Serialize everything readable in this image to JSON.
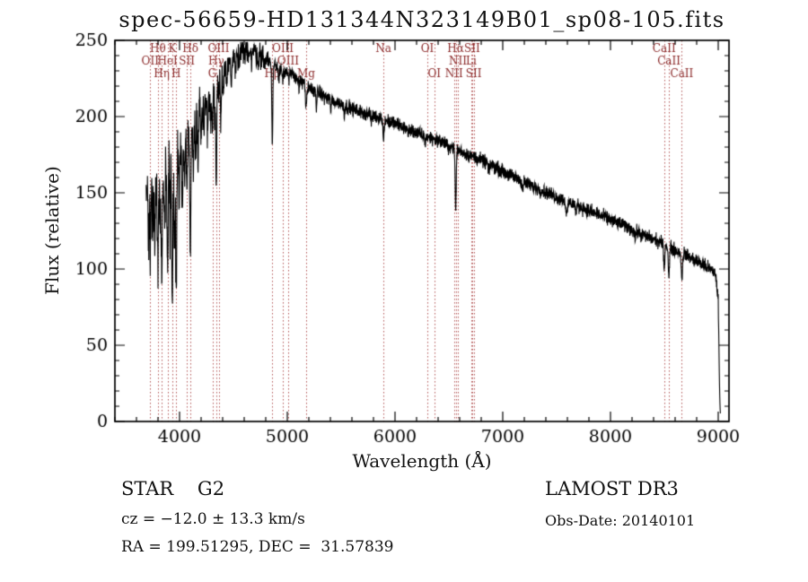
{
  "title": "spec-56659-HD131344N323149B01_sp08-105.fits",
  "footer": {
    "class_line": "STAR    G2",
    "survey": "LAMOST DR3",
    "cz_line": "cz = −12.0 ± 13.3 km/s",
    "obs_date": "Obs-Date: 20140101",
    "radec_line": "RA = 199.51295, DEC =  31.57839"
  },
  "chart_data": {
    "type": "line",
    "title": "spec-56659-HD131344N323149B01_sp08-105.fits",
    "xlabel": "Wavelength (Å)",
    "ylabel": "Flux (relative)",
    "xlim": [
      3400,
      9100
    ],
    "ylim": [
      0,
      250
    ],
    "xticks": [
      4000,
      5000,
      6000,
      7000,
      8000,
      9000
    ],
    "yticks": [
      0,
      50,
      100,
      150,
      200,
      250
    ],
    "x_minor_step": 200,
    "y_minor_step": 10,
    "line_color": "#000000",
    "marker_line_color": "#b25555",
    "marker_label_color": "#8b2a2a",
    "spectral_lines": [
      {
        "wavelength": 3727,
        "label": "OII",
        "row": 2
      },
      {
        "wavelength": 3798,
        "label": "Hθ",
        "row": 1
      },
      {
        "wavelength": 3835,
        "label": "Hη",
        "row": 3
      },
      {
        "wavelength": 3889,
        "label": "HeI",
        "row": 2
      },
      {
        "wavelength": 3933,
        "label": "K",
        "row": 1
      },
      {
        "wavelength": 3968,
        "label": "H",
        "row": 3
      },
      {
        "wavelength": 4068,
        "label": "SII",
        "row": 2
      },
      {
        "wavelength": 4101,
        "label": "Hδ",
        "row": 1
      },
      {
        "wavelength": 4305,
        "label": "G",
        "row": 3
      },
      {
        "wavelength": 4340,
        "label": "Hγ",
        "row": 2
      },
      {
        "wavelength": 4363,
        "label": "OIII",
        "row": 1
      },
      {
        "wavelength": 4861,
        "label": "Hβ",
        "row": 3
      },
      {
        "wavelength": 4959,
        "label": "OIII",
        "row": 1
      },
      {
        "wavelength": 5007,
        "label": "OIII",
        "row": 2
      },
      {
        "wavelength": 5175,
        "label": "Mg",
        "row": 3
      },
      {
        "wavelength": 5893,
        "label": "Na",
        "row": 1
      },
      {
        "wavelength": 6300,
        "label": "OI",
        "row": 1
      },
      {
        "wavelength": 6364,
        "label": "OI",
        "row": 3
      },
      {
        "wavelength": 6548,
        "label": "NII",
        "row": 3
      },
      {
        "wavelength": 6563,
        "label": "Hα",
        "row": 1
      },
      {
        "wavelength": 6583,
        "label": "NII",
        "row": 2
      },
      {
        "wavelength": 6707,
        "label": "Li",
        "row": 2
      },
      {
        "wavelength": 6716,
        "label": "SII",
        "row": 1
      },
      {
        "wavelength": 6731,
        "label": "SII",
        "row": 3
      },
      {
        "wavelength": 8498,
        "label": "CaII",
        "row": 1
      },
      {
        "wavelength": 8542,
        "label": "CaII",
        "row": 2
      },
      {
        "wavelength": 8662,
        "label": "CaII",
        "row": 3
      }
    ],
    "continuum": [
      [
        3690,
        147
      ],
      [
        3730,
        150
      ],
      [
        3780,
        153
      ],
      [
        3830,
        156
      ],
      [
        3880,
        160
      ],
      [
        3930,
        165
      ],
      [
        3980,
        171
      ],
      [
        4030,
        179
      ],
      [
        4080,
        188
      ],
      [
        4130,
        196
      ],
      [
        4180,
        204
      ],
      [
        4230,
        210
      ],
      [
        4280,
        215
      ],
      [
        4330,
        221
      ],
      [
        4380,
        227
      ],
      [
        4430,
        232
      ],
      [
        4480,
        236
      ],
      [
        4530,
        239
      ],
      [
        4580,
        242
      ],
      [
        4630,
        244
      ],
      [
        4680,
        243
      ],
      [
        4730,
        241
      ],
      [
        4780,
        239
      ],
      [
        4830,
        237
      ],
      [
        4880,
        234
      ],
      [
        4930,
        232
      ],
      [
        4980,
        230
      ],
      [
        5030,
        228
      ],
      [
        5080,
        226
      ],
      [
        5130,
        223
      ],
      [
        5180,
        220
      ],
      [
        5230,
        218
      ],
      [
        5280,
        216
      ],
      [
        5330,
        214
      ],
      [
        5380,
        212
      ],
      [
        5430,
        210
      ],
      [
        5480,
        209
      ],
      [
        5530,
        207
      ],
      [
        5580,
        206
      ],
      [
        5630,
        204
      ],
      [
        5680,
        203
      ],
      [
        5730,
        202
      ],
      [
        5780,
        201
      ],
      [
        5830,
        200
      ],
      [
        5880,
        199
      ],
      [
        5930,
        197
      ],
      [
        5980,
        196
      ],
      [
        6080,
        193
      ],
      [
        6180,
        190
      ],
      [
        6280,
        187
      ],
      [
        6380,
        185
      ],
      [
        6480,
        182
      ],
      [
        6580,
        178
      ],
      [
        6680,
        175
      ],
      [
        6780,
        172
      ],
      [
        6880,
        169
      ],
      [
        6980,
        165
      ],
      [
        7080,
        161
      ],
      [
        7180,
        158
      ],
      [
        7280,
        154
      ],
      [
        7380,
        151
      ],
      [
        7480,
        148
      ],
      [
        7580,
        145
      ],
      [
        7680,
        142
      ],
      [
        7780,
        139
      ],
      [
        7880,
        136
      ],
      [
        7980,
        133
      ],
      [
        8080,
        130
      ],
      [
        8180,
        127
      ],
      [
        8280,
        123
      ],
      [
        8380,
        120
      ],
      [
        8480,
        117
      ],
      [
        8580,
        113
      ],
      [
        8680,
        110
      ],
      [
        8780,
        106
      ],
      [
        8880,
        102
      ],
      [
        8940,
        99
      ],
      [
        8975,
        97
      ],
      [
        9000,
        80
      ],
      [
        9008,
        40
      ],
      [
        9014,
        15
      ],
      [
        9020,
        6
      ]
    ],
    "absorption_lines": [
      [
        3712,
        20,
        4
      ],
      [
        3727,
        28,
        4
      ],
      [
        3750,
        38,
        4
      ],
      [
        3770,
        30,
        4
      ],
      [
        3798,
        55,
        4.5
      ],
      [
        3820,
        28,
        4
      ],
      [
        3835,
        62,
        4.5
      ],
      [
        3860,
        40,
        4
      ],
      [
        3889,
        72,
        4.5
      ],
      [
        3912,
        35,
        4
      ],
      [
        3933,
        92,
        5
      ],
      [
        3952,
        40,
        4
      ],
      [
        3968,
        82,
        5
      ],
      [
        3995,
        30,
        4
      ],
      [
        4026,
        38,
        4
      ],
      [
        4045,
        26,
        4
      ],
      [
        4068,
        30,
        4
      ],
      [
        4101,
        82,
        5
      ],
      [
        4128,
        28,
        4
      ],
      [
        4150,
        22,
        4
      ],
      [
        4172,
        30,
        4
      ],
      [
        4200,
        20,
        4
      ],
      [
        4227,
        26,
        4
      ],
      [
        4260,
        22,
        4
      ],
      [
        4290,
        24,
        4
      ],
      [
        4305,
        28,
        4
      ],
      [
        4325,
        24,
        4
      ],
      [
        4340,
        72,
        5
      ],
      [
        4363,
        20,
        4
      ],
      [
        4383,
        30,
        4
      ],
      [
        4405,
        16,
        4
      ],
      [
        4438,
        12,
        4
      ],
      [
        4481,
        16,
        4
      ],
      [
        4520,
        10,
        4
      ],
      [
        4555,
        8,
        4
      ],
      [
        4605,
        7,
        4
      ],
      [
        4668,
        8,
        4
      ],
      [
        4730,
        6,
        4
      ],
      [
        4785,
        6,
        4
      ],
      [
        4861,
        52,
        5
      ],
      [
        4921,
        9,
        4
      ],
      [
        4958,
        6,
        4
      ],
      [
        5015,
        7,
        4
      ],
      [
        5110,
        6,
        4
      ],
      [
        5175,
        14,
        7
      ],
      [
        5270,
        9,
        5
      ],
      [
        5405,
        6,
        4
      ],
      [
        5530,
        5,
        4
      ],
      [
        5780,
        5,
        4
      ],
      [
        5893,
        12,
        6
      ],
      [
        6122,
        5,
        4
      ],
      [
        6280,
        5,
        4
      ],
      [
        6495,
        5,
        4
      ],
      [
        6563,
        40,
        5
      ],
      [
        6870,
        6,
        6
      ],
      [
        7186,
        5,
        6
      ],
      [
        7594,
        9,
        8
      ],
      [
        7680,
        5,
        5
      ],
      [
        8230,
        5,
        5
      ],
      [
        8498,
        16,
        5
      ],
      [
        8542,
        21,
        5
      ],
      [
        8662,
        19,
        5
      ]
    ],
    "noise": {
      "seed": 11,
      "blue_amp": 11,
      "mid_amp": 2.2,
      "red_amp": 2.2
    },
    "series_range": [
      3690,
      9020
    ]
  }
}
